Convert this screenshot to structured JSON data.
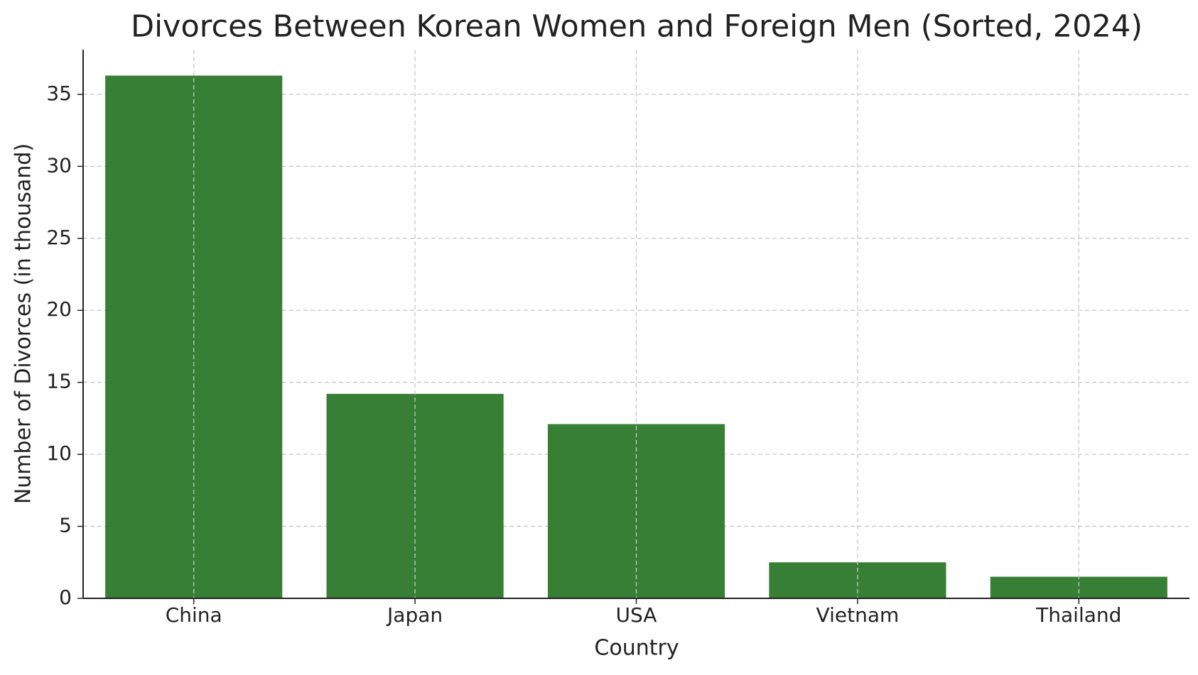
{
  "chart_data": {
    "type": "bar",
    "title": "Divorces Between Korean Women and Foreign Men (Sorted, 2024)",
    "x_label": "Country",
    "y_label": "Number of Divorces (in thousand)",
    "categories": [
      "China",
      "Japan",
      "USA",
      "Vietnam",
      "Thailand"
    ],
    "values": [
      36.3,
      14.2,
      12.1,
      2.5,
      1.5
    ],
    "color": "#367f34",
    "ylim": [
      0,
      38.1
    ],
    "yticks": [
      0,
      5,
      10,
      15,
      20,
      25,
      30,
      35
    ],
    "grid": true
  }
}
